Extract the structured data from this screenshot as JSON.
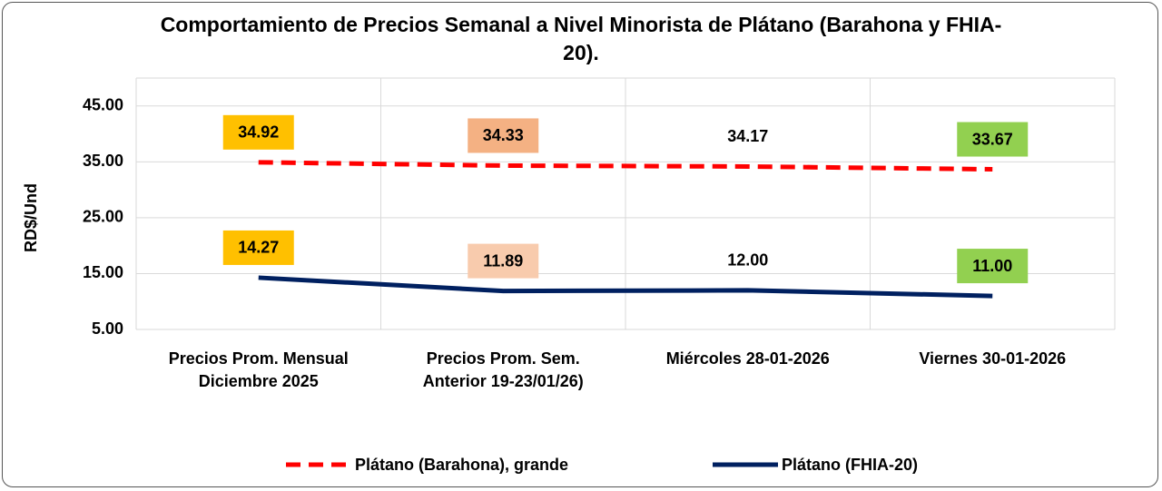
{
  "chart_data": {
    "type": "line",
    "title": "Comportamiento de Precios Semanal a Nivel Minorista de Plátano (Barahona y FHIA-20).",
    "y_label": "RD$/Und",
    "categories": [
      "Precios Prom. Mensual\nDiciembre 2025",
      "Precios Prom. Sem.\nAnterior  19-23/01/26)",
      "Miércoles 28-01-2026",
      "Viernes 30-01-2026"
    ],
    "series": [
      {
        "name": "Plátano (Barahona), grande",
        "color": "#ff0000",
        "dashed": true,
        "values": [
          34.92,
          34.33,
          34.17,
          33.67
        ],
        "label_backgrounds": [
          "#ffc000",
          "#f4b183",
          null,
          "#92d050"
        ]
      },
      {
        "name": "Plátano (FHIA-20)",
        "color": "#002060",
        "dashed": false,
        "values": [
          14.27,
          11.89,
          12.0,
          11.0
        ],
        "value_labels": [
          "14.27",
          "11.89",
          "12.00",
          "11.00"
        ],
        "label_backgrounds": [
          "#ffc000",
          "#f8cbad",
          null,
          "#92d050"
        ]
      }
    ],
    "ylim": [
      5,
      50
    ],
    "yticks": [
      {
        "value": 5,
        "label": "5.00"
      },
      {
        "value": 15,
        "label": "15.00"
      },
      {
        "value": 25,
        "label": "25.00"
      },
      {
        "value": 35,
        "label": "35.00"
      },
      {
        "value": 45,
        "label": "45.00"
      }
    ],
    "grid": true,
    "legend": "bottom"
  }
}
